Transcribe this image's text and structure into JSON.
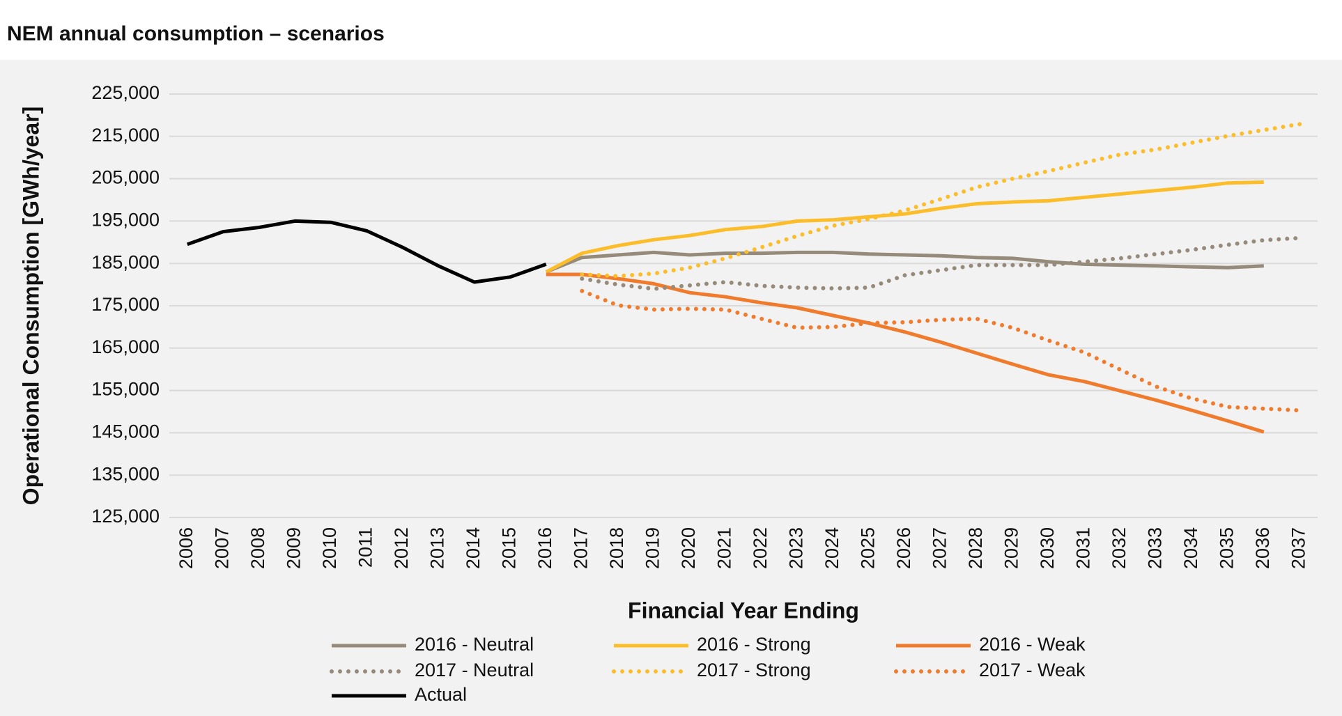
{
  "chart_data": {
    "type": "line",
    "title": "NEM annual consumption – scenarios",
    "x_label": "Financial Year Ending",
    "y_label": "Operational Consumption [GWh/year]",
    "categories": [
      "2006",
      "2007",
      "2008",
      "2009",
      "2010",
      "2011",
      "2012",
      "2013",
      "2014",
      "2015",
      "2016",
      "2017",
      "2018",
      "2019",
      "2020",
      "2021",
      "2022",
      "2023",
      "2024",
      "2025",
      "2026",
      "2027",
      "2028",
      "2029",
      "2030",
      "2031",
      "2032",
      "2033",
      "2034",
      "2035",
      "2036",
      "2037"
    ],
    "ylim": [
      125000,
      225000
    ],
    "yticks": [
      {
        "value": 125000,
        "label": "125,000"
      },
      {
        "value": 135000,
        "label": "135,000"
      },
      {
        "value": 145000,
        "label": "145,000"
      },
      {
        "value": 155000,
        "label": "155,000"
      },
      {
        "value": 165000,
        "label": "165,000"
      },
      {
        "value": 175000,
        "label": "175,000"
      },
      {
        "value": 185000,
        "label": "185,000"
      },
      {
        "value": 195000,
        "label": "195,000"
      },
      {
        "value": 205000,
        "label": "205,000"
      },
      {
        "value": 215000,
        "label": "215,000"
      },
      {
        "value": 225000,
        "label": "225,000"
      }
    ],
    "grid": true,
    "legend": "bottom",
    "series": [
      {
        "name": "2016 - Neutral",
        "color": "#968a7a",
        "style": "solid",
        "values": [
          null,
          null,
          null,
          null,
          null,
          null,
          null,
          null,
          null,
          null,
          183000,
          186400,
          187000,
          187600,
          187000,
          187400,
          187400,
          187600,
          187600,
          187200,
          187000,
          186800,
          186400,
          186200,
          185400,
          184800,
          184600,
          184400,
          184200,
          184000,
          184400,
          null
        ]
      },
      {
        "name": "2016 - Strong",
        "color": "#fbbd2a",
        "style": "solid",
        "values": [
          null,
          null,
          null,
          null,
          null,
          null,
          null,
          null,
          null,
          null,
          183000,
          187400,
          189200,
          190600,
          191600,
          193000,
          193700,
          195000,
          195300,
          196000,
          196700,
          198000,
          199100,
          199500,
          199800,
          200600,
          201400,
          202200,
          203000,
          204000,
          204200,
          null
        ]
      },
      {
        "name": "2016 - Weak",
        "color": "#f07b2c",
        "style": "solid",
        "values": [
          null,
          null,
          null,
          null,
          null,
          null,
          null,
          null,
          null,
          null,
          182400,
          182400,
          181400,
          180200,
          178100,
          177100,
          175700,
          174500,
          172700,
          170900,
          168800,
          166400,
          163800,
          161200,
          158700,
          157100,
          154900,
          152700,
          150300,
          147800,
          145200,
          null
        ]
      },
      {
        "name": "2017 - Neutral",
        "color": "#968a7a",
        "style": "dotted",
        "values": [
          null,
          null,
          null,
          null,
          null,
          null,
          null,
          null,
          null,
          null,
          null,
          181400,
          180000,
          179000,
          179800,
          180600,
          179700,
          179300,
          179100,
          179300,
          182200,
          183400,
          184600,
          184600,
          184600,
          185400,
          186200,
          187200,
          188200,
          189400,
          190500,
          191000
        ]
      },
      {
        "name": "2017 - Strong",
        "color": "#fbbd2a",
        "style": "dotted",
        "values": [
          null,
          null,
          null,
          null,
          null,
          null,
          null,
          null,
          null,
          null,
          null,
          182400,
          182000,
          182600,
          184000,
          186200,
          188800,
          191500,
          193900,
          195500,
          197500,
          200200,
          203000,
          205000,
          206800,
          208800,
          210700,
          211900,
          213500,
          215100,
          216500,
          217900
        ]
      },
      {
        "name": "2017 - Weak",
        "color": "#f07b2c",
        "style": "dotted",
        "values": [
          null,
          null,
          null,
          null,
          null,
          null,
          null,
          null,
          null,
          null,
          null,
          178500,
          175100,
          174100,
          174300,
          174100,
          171900,
          169800,
          170000,
          170900,
          171100,
          171700,
          171900,
          169800,
          166800,
          164000,
          159900,
          155900,
          153100,
          151100,
          150700,
          150300
        ]
      },
      {
        "name": "Actual",
        "color": "#000000",
        "style": "solid",
        "values": [
          189500,
          192500,
          193500,
          195000,
          194700,
          192700,
          188800,
          184400,
          180600,
          181800,
          184800,
          null,
          null,
          null,
          null,
          null,
          null,
          null,
          null,
          null,
          null,
          null,
          null,
          null,
          null,
          null,
          null,
          null,
          null,
          null,
          null,
          null
        ]
      }
    ]
  }
}
